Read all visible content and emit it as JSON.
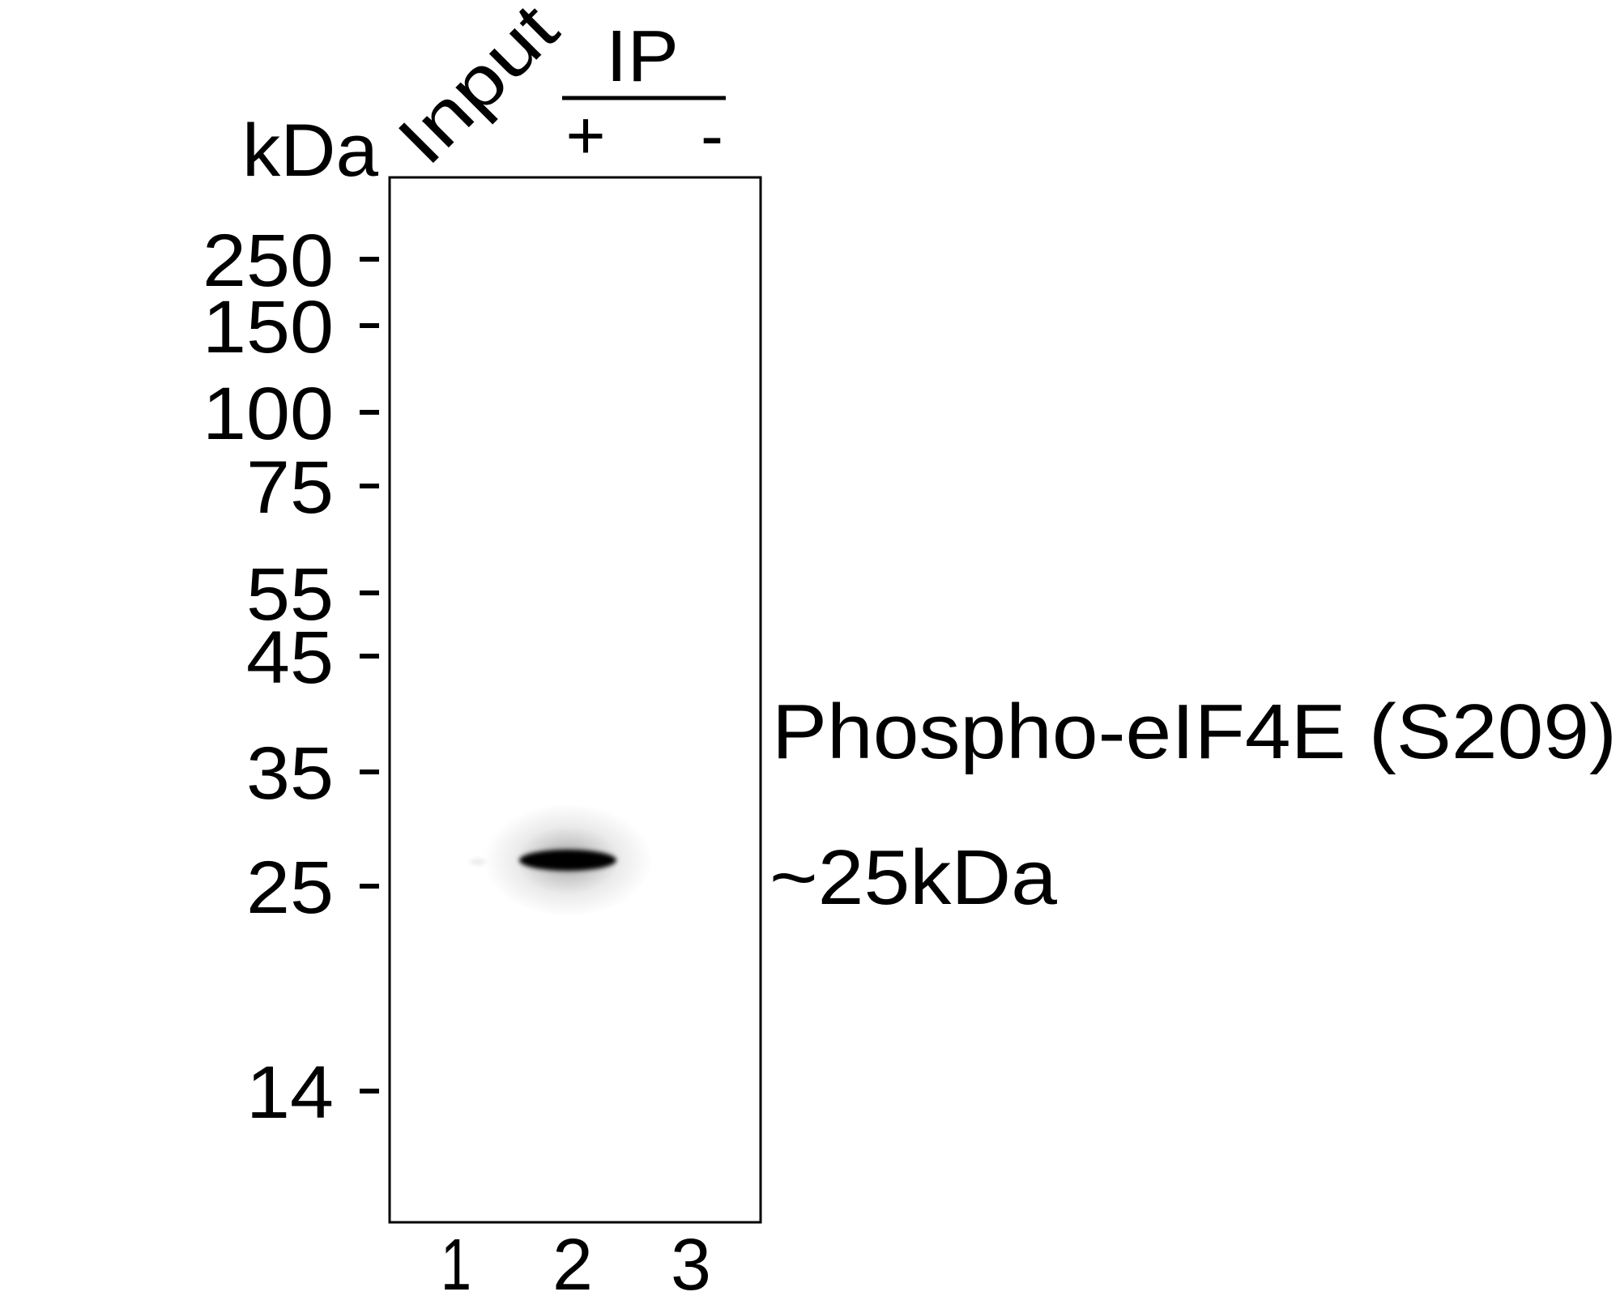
{
  "unit_label": "kDa",
  "lane_headers": {
    "input": "Input",
    "ip": "IP",
    "ip_plus": "+",
    "ip_minus": "-"
  },
  "markers": [
    "250",
    "150",
    "100",
    "75",
    "55",
    "45",
    "35",
    "25",
    "14"
  ],
  "lane_numbers": [
    "1",
    "2",
    "3"
  ],
  "target": {
    "name": "Phospho-eIF4E (S209)",
    "size": "~25kDa"
  },
  "band": {
    "lane": "2",
    "marker": "25",
    "color": "#000000"
  }
}
